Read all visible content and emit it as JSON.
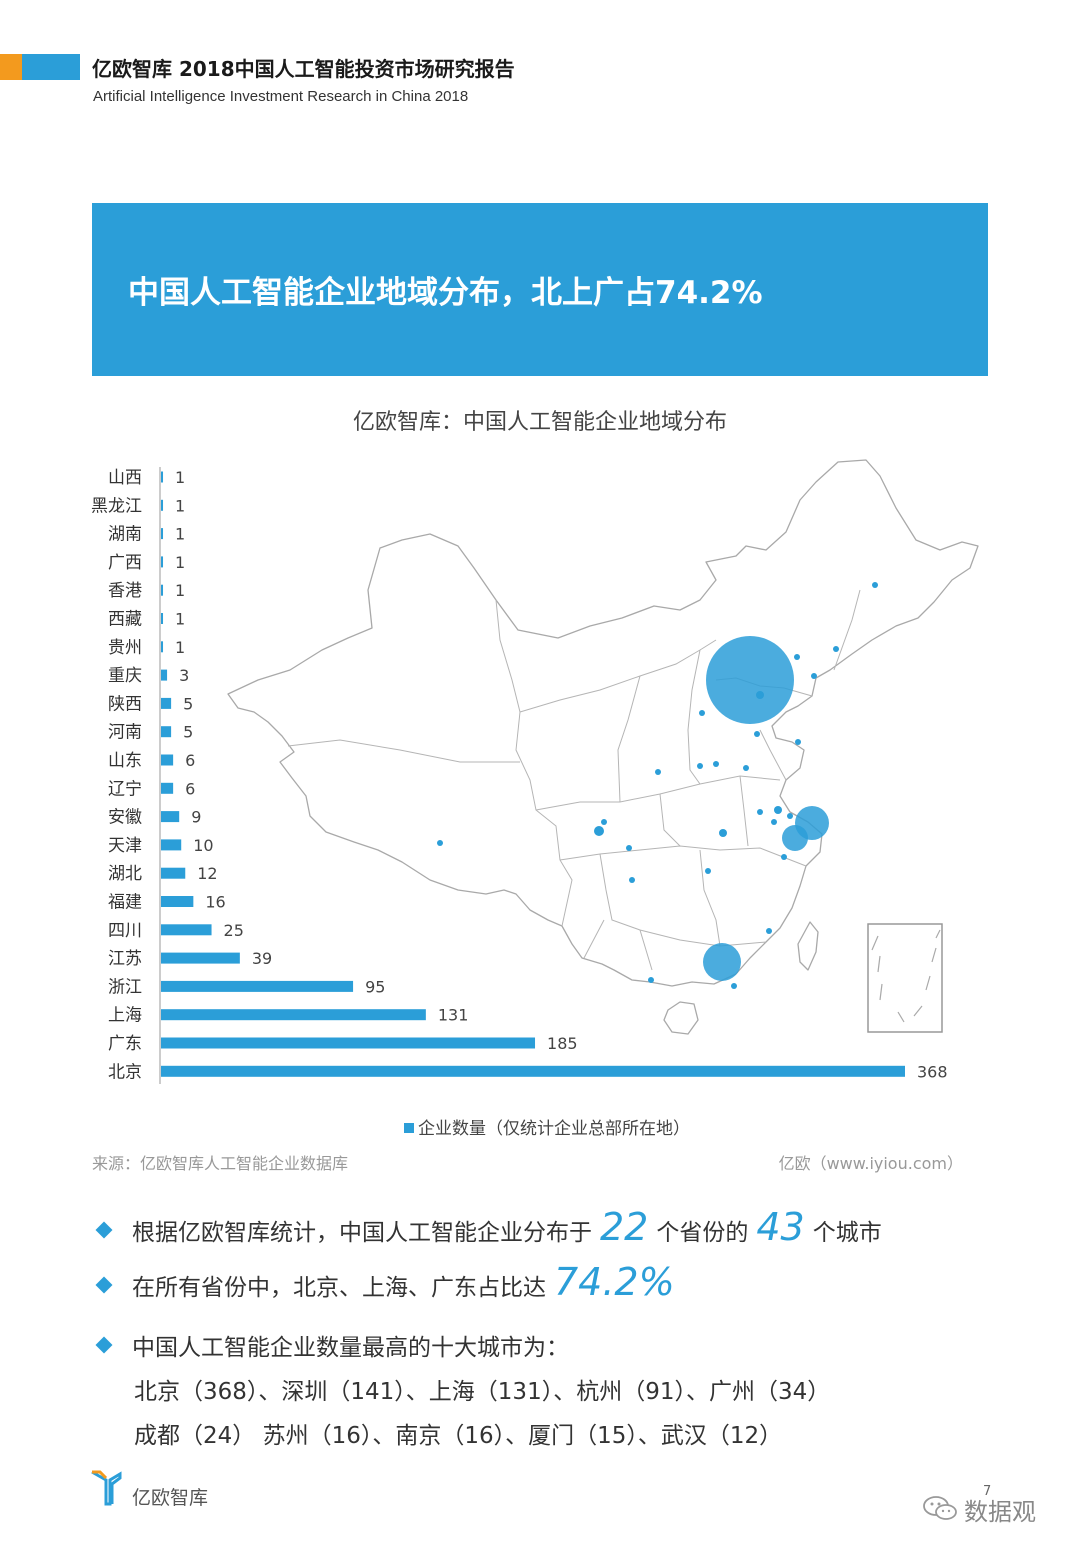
{
  "header": {
    "title": "亿欧智库 2018中国人工智能投资市场研究报告",
    "subtitle": "Artificial Intelligence Investment Research in China 2018"
  },
  "banner": {
    "text": "中国人工智能企业地域分布，北上广占74.2%"
  },
  "colors": {
    "accent": "#2b9ed8",
    "orange": "#f39a1e",
    "map_stroke": "#a9a9a9"
  },
  "chart_data": {
    "type": "bar",
    "orientation": "horizontal",
    "title": "亿欧智库：中国人工智能企业地域分布",
    "categories": [
      "山西",
      "黑龙江",
      "湖南",
      "广西",
      "香港",
      "西藏",
      "贵州",
      "重庆",
      "陕西",
      "河南",
      "山东",
      "辽宁",
      "安徽",
      "天津",
      "湖北",
      "福建",
      "四川",
      "江苏",
      "浙江",
      "上海",
      "广东",
      "北京"
    ],
    "series": [
      {
        "name": "企业数量（仅统计企业总部所在地）",
        "values": [
          1,
          1,
          1,
          1,
          1,
          1,
          1,
          3,
          5,
          5,
          6,
          6,
          9,
          10,
          12,
          16,
          25,
          39,
          95,
          131,
          185,
          368
        ]
      }
    ],
    "legend_position": "bottom",
    "grid": false
  },
  "map": {
    "icon": "china-map-icon"
  },
  "source": {
    "left": "来源：亿欧智库人工智能企业数据库",
    "right": "亿欧（www.iyiou.com）"
  },
  "bullets": {
    "b1_pre": "根据亿欧智库统计，中国人工智能企业分布于",
    "b1_num1": "22",
    "b1_mid": "个省份的",
    "b1_num2": "43",
    "b1_post": "个城市",
    "b2_pre": "在所有省份中，北京、上海、广东占比达",
    "b2_num": "74.2%",
    "b3": "中国人工智能企业数量最高的十大城市为：",
    "cities_line1": "北京（368）、深圳（141）、上海（131）、杭州（91）、广州（34）",
    "cities_line2": "成都（24）  苏州（16）、南京（16）、厦门（15）、武汉（12）"
  },
  "footer": {
    "brand": "亿欧智库",
    "watermark": "数据观",
    "page_number": "7"
  }
}
